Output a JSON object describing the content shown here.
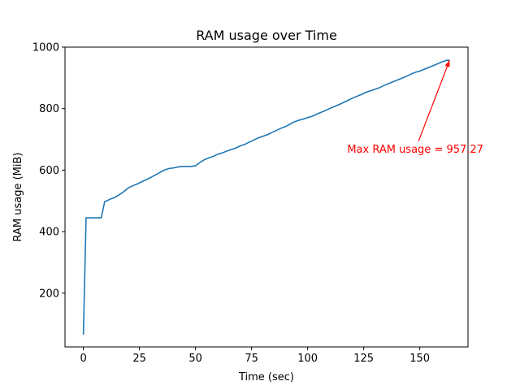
{
  "chart_data": {
    "type": "line",
    "title": "RAM usage over Time",
    "xlabel": "Time (sec)",
    "ylabel": "RAM usage (MiB)",
    "xlim": [
      -8.2,
      171.5
    ],
    "ylim": [
      25,
      1000
    ],
    "xticks": [
      0,
      25,
      50,
      75,
      100,
      125,
      150
    ],
    "xtick_labels": [
      "0",
      "25",
      "50",
      "75",
      "100",
      "125",
      "150"
    ],
    "yticks": [
      200,
      400,
      600,
      800,
      1000
    ],
    "ytick_labels": [
      "200",
      "400",
      "600",
      "800",
      "1000"
    ],
    "grid": false,
    "series": [
      {
        "color": "#1f77b4",
        "x": [
          0,
          1.2,
          2,
          5,
          8,
          9.5,
          10.5,
          12,
          14,
          16,
          18,
          20,
          22,
          24,
          26,
          28,
          30,
          32,
          34,
          36,
          38,
          40,
          42,
          44,
          46,
          48,
          50,
          52,
          54,
          56,
          58,
          60,
          62,
          64,
          66,
          68,
          70,
          72,
          74,
          76,
          78,
          80,
          82,
          84,
          86,
          88,
          90,
          92,
          94,
          96,
          98,
          100,
          102,
          104,
          106,
          108,
          110,
          112,
          114,
          116,
          118,
          120,
          122,
          124,
          126,
          128,
          130,
          132,
          134,
          136,
          138,
          140,
          142,
          144,
          146,
          148,
          150,
          152,
          154,
          156,
          158,
          160,
          162,
          163.3
        ],
        "values": [
          65,
          445,
          445,
          445,
          445,
          498,
          500,
          506,
          511,
          520,
          530,
          542,
          549,
          555,
          562,
          569,
          576,
          584,
          592,
          600,
          605,
          607,
          610,
          612,
          612,
          612,
          614,
          625,
          634,
          640,
          645,
          652,
          656,
          662,
          667,
          672,
          679,
          684,
          691,
          698,
          705,
          710,
          715,
          722,
          729,
          736,
          741,
          749,
          757,
          762,
          766,
          771,
          775,
          782,
          788,
          794,
          801,
          807,
          813,
          820,
          827,
          834,
          840,
          846,
          853,
          858,
          863,
          868,
          875,
          881,
          887,
          893,
          899,
          905,
          912,
          918,
          922,
          928,
          934,
          940,
          946,
          952,
          957.27,
          957.27
        ]
      }
    ],
    "annotation": {
      "text": "Max RAM usage = 957.27",
      "color": "#ff0000",
      "x": 163.3,
      "y": 957.27,
      "text_x": 148,
      "text_y": 657
    }
  }
}
